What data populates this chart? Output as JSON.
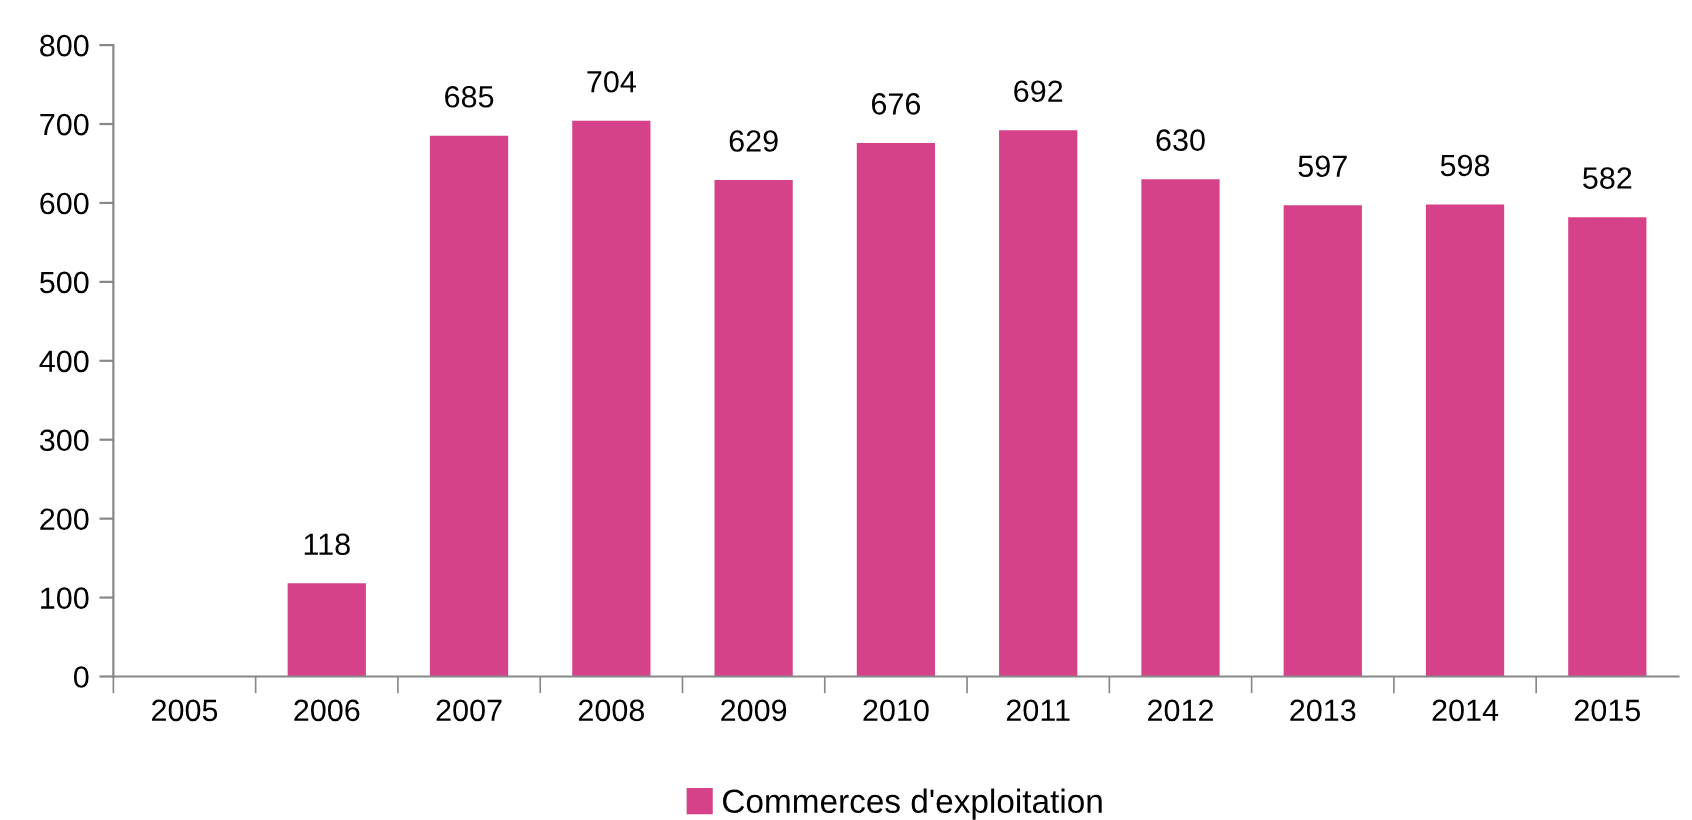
{
  "chart_data": {
    "type": "bar",
    "categories": [
      "2005",
      "2006",
      "2007",
      "2008",
      "2009",
      "2010",
      "2011",
      "2012",
      "2013",
      "2014",
      "2015"
    ],
    "series": [
      {
        "name": "Commerces d'exploitation",
        "color": "#d6428a",
        "values": [
          null,
          118,
          685,
          704,
          629,
          676,
          692,
          630,
          597,
          598,
          582
        ]
      }
    ],
    "ylim": [
      0,
      800
    ],
    "yticks": [
      0,
      100,
      200,
      300,
      400,
      500,
      600,
      700,
      800
    ],
    "data_labels": true,
    "grid": false,
    "legend": "bottom"
  }
}
